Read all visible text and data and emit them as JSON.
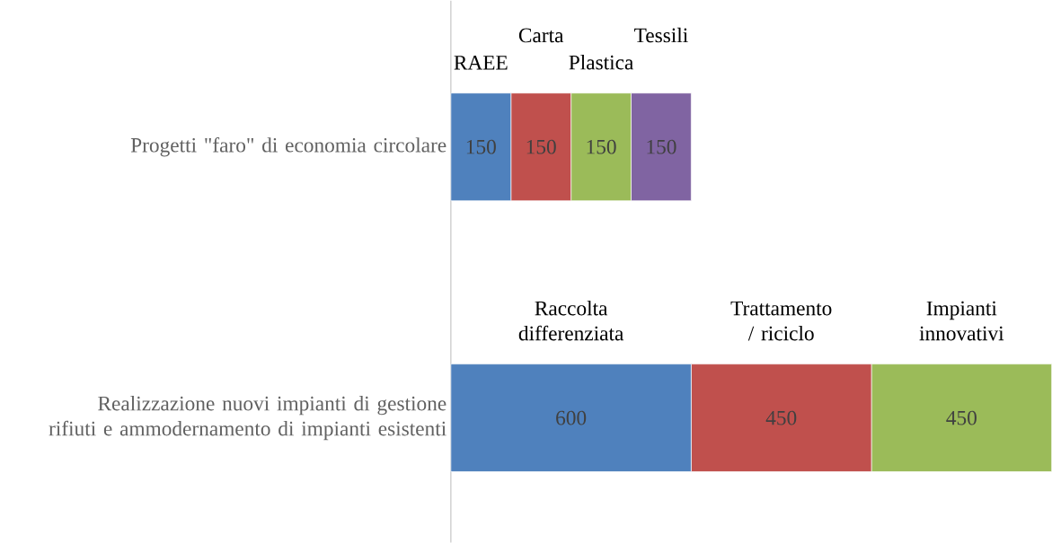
{
  "chart_data": {
    "type": "bar",
    "orientation": "horizontal",
    "stacked": true,
    "data_labels": true,
    "categories": [
      "Progetti \"faro\" di economia circolare",
      "Realizzazione nuovi impianti di gestione rifiuti e ammodernamento di impianti esistenti"
    ],
    "series": [
      {
        "color": "#4f81bd",
        "values": [
          150,
          600
        ]
      },
      {
        "color": "#c0504d",
        "values": [
          150,
          450
        ]
      },
      {
        "color": "#9bbb59",
        "values": [
          150,
          450
        ]
      },
      {
        "color": "#8064a2",
        "values": [
          150,
          null
        ]
      }
    ],
    "annotations": [
      "RAEE",
      "Carta",
      "Plastica",
      "Tessili",
      "Raccolta differenziata",
      "Trattamento / riciclo",
      "Impianti innovativi"
    ]
  }
}
